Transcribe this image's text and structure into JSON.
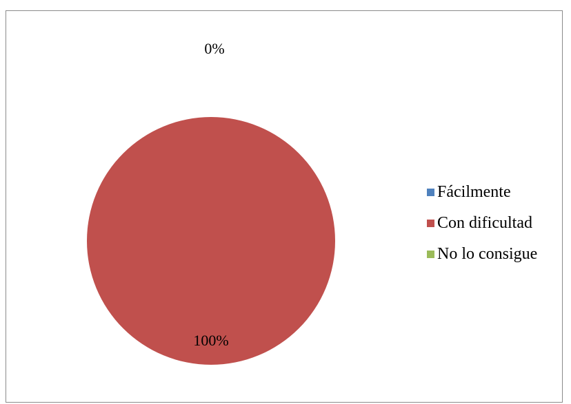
{
  "chart_data": {
    "type": "pie",
    "categories": [
      "Fácilmente",
      "Con dificultad",
      "No lo consigue"
    ],
    "values": [
      0,
      100,
      0
    ],
    "data_labels": [
      "0%",
      "100%",
      "0%"
    ],
    "colors": [
      "#4f81bd",
      "#c0504d",
      "#9bbb59"
    ],
    "title": "",
    "legend_position": "right"
  }
}
